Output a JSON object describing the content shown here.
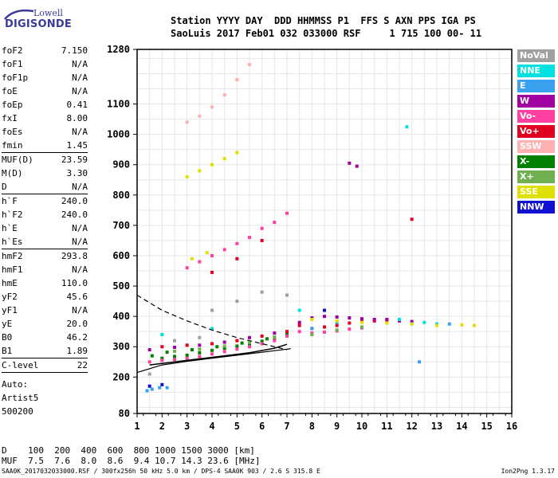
{
  "logo": {
    "company": "Lowell",
    "product": "DIGISONDE"
  },
  "header": {
    "line1": "Station YYYY DAY  DDD HHMMSS P1  FFS S AXN PPS IGA PS",
    "line2": "SaoLuis 2017 Feb01 032 033000 RSF     1 715 100 00- 11"
  },
  "params": [
    {
      "k": "foF2",
      "v": "7.150"
    },
    {
      "k": "foF1",
      "v": "N/A"
    },
    {
      "k": "foF1p",
      "v": "N/A"
    },
    {
      "k": "foE",
      "v": "N/A"
    },
    {
      "k": "foEp",
      "v": "0.41"
    },
    {
      "k": "fxI",
      "v": "8.00"
    },
    {
      "k": "foEs",
      "v": "N/A"
    },
    {
      "k": "fmin",
      "v": "1.45"
    },
    {
      "k": "MUF(D)",
      "v": "23.59",
      "sep": true
    },
    {
      "k": "M(D)",
      "v": "3.30"
    },
    {
      "k": "D",
      "v": "N/A"
    },
    {
      "k": "h`F",
      "v": "240.0",
      "sep": true
    },
    {
      "k": "h`F2",
      "v": "240.0"
    },
    {
      "k": "h`E",
      "v": "N/A"
    },
    {
      "k": "h`Es",
      "v": "N/A"
    },
    {
      "k": "hmF2",
      "v": "293.8",
      "sep": true
    },
    {
      "k": "hmF1",
      "v": "N/A"
    },
    {
      "k": "hmE",
      "v": "110.0"
    },
    {
      "k": "yF2",
      "v": "45.6"
    },
    {
      "k": "yF1",
      "v": "N/A"
    },
    {
      "k": "yE",
      "v": "20.0"
    },
    {
      "k": "B0",
      "v": "46.2"
    },
    {
      "k": "B1",
      "v": "1.89"
    },
    {
      "k": "C-level",
      "v": "22",
      "sep": true
    }
  ],
  "autoscale": {
    "line1": "Auto:",
    "line2": "Artist5",
    "line3": "500200"
  },
  "legend": [
    {
      "label": "NoVal",
      "bg": "#a0a0a0",
      "fg": "#ffffff"
    },
    {
      "label": "NNE",
      "bg": "#00e0e0",
      "fg": "#ffffff"
    },
    {
      "label": "E",
      "bg": "#3aa0f0",
      "fg": "#ffffff"
    },
    {
      "label": "W",
      "bg": "#a000a0",
      "fg": "#ffffff"
    },
    {
      "label": "Vo-",
      "bg": "#ff40a0",
      "fg": "#ffffff"
    },
    {
      "label": "Vo+",
      "bg": "#e00020",
      "fg": "#ffffff"
    },
    {
      "label": "SSW",
      "bg": "#ffb0b0",
      "fg": "#ffffff"
    },
    {
      "label": "X-",
      "bg": "#008000",
      "fg": "#ffffff"
    },
    {
      "label": "X+",
      "bg": "#70b050",
      "fg": "#ffffff"
    },
    {
      "label": "SSE",
      "bg": "#e0e000",
      "fg": "#ffffff"
    },
    {
      "label": "NNW",
      "bg": "#1010d0",
      "fg": "#ffffff"
    }
  ],
  "muf_table": {
    "d_line": "D    100  200  400  600  800 1000 1500 3000 [km]",
    "muf_line": "MUF  7.5  7.6  8.0  8.6  9.4 10.7 14.3 23.6 [MHz]"
  },
  "footer": {
    "left": "SAA0K_2017032033000.RSF / 300fx256h 50 kHz 5.0 km / DPS-4 SAA0K 903 / 2.6 S 315.8 E",
    "right": "Ion2Png 1.3.17"
  },
  "chart_data": {
    "type": "scatter",
    "title": "",
    "xlabel": "",
    "ylabel": "",
    "x_ticks": [
      1,
      2,
      3,
      4,
      5,
      6,
      7,
      8,
      9,
      10,
      11,
      12,
      13,
      14,
      15,
      16
    ],
    "xlim": [
      1,
      16
    ],
    "y_ticks": [
      80,
      200,
      300,
      400,
      500,
      600,
      700,
      800,
      900,
      1000,
      1100,
      1280
    ],
    "ylim": [
      80,
      1280
    ],
    "grid": true,
    "series": [
      {
        "name": "X-",
        "color": "#008000",
        "points": [
          [
            1.6,
            270
          ],
          [
            2.0,
            262
          ],
          [
            2.5,
            268
          ],
          [
            3.0,
            272
          ],
          [
            3.5,
            280
          ],
          [
            4.0,
            288
          ],
          [
            4.5,
            295
          ],
          [
            5.0,
            302
          ],
          [
            5.5,
            310
          ],
          [
            6.0,
            318
          ],
          [
            6.5,
            328
          ],
          [
            7.0,
            340
          ],
          [
            2.2,
            282
          ],
          [
            3.2,
            290
          ],
          [
            4.2,
            300
          ],
          [
            5.2,
            312
          ],
          [
            6.2,
            326
          ]
        ]
      },
      {
        "name": "Vo-",
        "color": "#ff40a0",
        "points": [
          [
            1.5,
            250
          ],
          [
            2.0,
            255
          ],
          [
            2.5,
            258
          ],
          [
            3.0,
            262
          ],
          [
            3.5,
            268
          ],
          [
            4.0,
            276
          ],
          [
            4.5,
            284
          ],
          [
            5.0,
            292
          ],
          [
            5.5,
            300
          ],
          [
            6.0,
            310
          ],
          [
            6.5,
            320
          ],
          [
            7.0,
            335
          ],
          [
            7.5,
            350
          ],
          [
            8.0,
            345
          ],
          [
            8.5,
            348
          ],
          [
            9.0,
            352
          ],
          [
            9.5,
            358
          ],
          [
            10.0,
            362
          ],
          [
            3.0,
            560
          ],
          [
            3.5,
            580
          ],
          [
            4.0,
            600
          ],
          [
            4.5,
            620
          ],
          [
            5.0,
            640
          ],
          [
            5.5,
            660
          ],
          [
            6.0,
            690
          ],
          [
            6.5,
            710
          ],
          [
            7.0,
            740
          ]
        ]
      },
      {
        "name": "Vo+",
        "color": "#e00020",
        "points": [
          [
            2.0,
            300
          ],
          [
            3.0,
            305
          ],
          [
            4.0,
            310
          ],
          [
            5.0,
            320
          ],
          [
            6.0,
            335
          ],
          [
            7.0,
            350
          ],
          [
            7.5,
            370
          ],
          [
            8.0,
            360
          ],
          [
            8.5,
            365
          ],
          [
            9.0,
            370
          ],
          [
            9.5,
            378
          ],
          [
            10.0,
            382
          ],
          [
            10.5,
            385
          ],
          [
            11.0,
            388
          ],
          [
            4.0,
            545
          ],
          [
            5.0,
            590
          ],
          [
            6.0,
            650
          ],
          [
            12.0,
            720
          ]
        ]
      },
      {
        "name": "W",
        "color": "#a000a0",
        "points": [
          [
            1.5,
            290
          ],
          [
            2.5,
            298
          ],
          [
            3.5,
            305
          ],
          [
            4.5,
            315
          ],
          [
            5.5,
            330
          ],
          [
            6.5,
            345
          ],
          [
            7.5,
            380
          ],
          [
            8.0,
            395
          ],
          [
            8.5,
            400
          ],
          [
            9.0,
            398
          ],
          [
            9.5,
            395
          ],
          [
            10.0,
            392
          ],
          [
            10.5,
            390
          ],
          [
            11.0,
            390
          ],
          [
            11.5,
            385
          ],
          [
            12.0,
            383
          ],
          [
            9.5,
            905
          ],
          [
            9.8,
            895
          ]
        ]
      },
      {
        "name": "NNE",
        "color": "#00e0e0",
        "points": [
          [
            2.0,
            340
          ],
          [
            4.0,
            360
          ],
          [
            7.5,
            420
          ],
          [
            11.5,
            390
          ],
          [
            12.0,
            375
          ],
          [
            12.5,
            380
          ],
          [
            11.8,
            1025
          ],
          [
            13.0,
            375
          ]
        ]
      },
      {
        "name": "E",
        "color": "#3aa0f0",
        "points": [
          [
            1.6,
            160
          ],
          [
            1.9,
            165
          ],
          [
            2.2,
            165
          ],
          [
            1.4,
            155
          ],
          [
            8.0,
            360
          ],
          [
            9.0,
            380
          ],
          [
            13.5,
            375
          ],
          [
            12.3,
            250
          ]
        ]
      },
      {
        "name": "SSE",
        "color": "#e0e000",
        "points": [
          [
            3.0,
            860
          ],
          [
            3.5,
            880
          ],
          [
            4.0,
            900
          ],
          [
            4.5,
            920
          ],
          [
            5.0,
            940
          ],
          [
            3.2,
            590
          ],
          [
            3.8,
            610
          ],
          [
            8.0,
            390
          ],
          [
            9.0,
            385
          ],
          [
            10.0,
            380
          ],
          [
            11.0,
            378
          ],
          [
            12.0,
            375
          ],
          [
            13.0,
            370
          ],
          [
            14.0,
            372
          ],
          [
            14.5,
            370
          ]
        ]
      },
      {
        "name": "X+",
        "color": "#70b050",
        "points": [
          [
            2.5,
            285
          ],
          [
            3.5,
            292
          ],
          [
            4.5,
            302
          ],
          [
            5.5,
            314
          ],
          [
            6.5,
            332
          ],
          [
            8.0,
            340
          ],
          [
            9.0,
            355
          ],
          [
            10.0,
            365
          ]
        ]
      },
      {
        "name": "SSW",
        "color": "#ffb0b0",
        "points": [
          [
            3.0,
            1040
          ],
          [
            3.5,
            1060
          ],
          [
            4.0,
            1090
          ],
          [
            4.5,
            1130
          ],
          [
            5.0,
            1180
          ],
          [
            5.5,
            1230
          ]
        ]
      },
      {
        "name": "NNW",
        "color": "#1010d0",
        "points": [
          [
            1.5,
            170
          ],
          [
            2.0,
            175
          ],
          [
            8.5,
            420
          ]
        ]
      },
      {
        "name": "NoVal",
        "color": "#a0a0a0",
        "points": [
          [
            1.5,
            210
          ],
          [
            2.5,
            320
          ],
          [
            3.5,
            330
          ],
          [
            4.0,
            420
          ],
          [
            5.0,
            450
          ],
          [
            6.0,
            480
          ],
          [
            7.0,
            470
          ]
        ]
      }
    ],
    "profile_curve": [
      [
        1.0,
        215
      ],
      [
        2.0,
        240
      ],
      [
        3.0,
        252
      ],
      [
        4.0,
        262
      ],
      [
        5.0,
        272
      ],
      [
        6.0,
        282
      ],
      [
        6.5,
        287
      ],
      [
        7.0,
        292
      ],
      [
        7.15,
        293.8
      ]
    ],
    "dashed_curve": [
      [
        1.0,
        470
      ],
      [
        2.0,
        420
      ],
      [
        3.0,
        385
      ],
      [
        4.0,
        355
      ],
      [
        5.0,
        330
      ],
      [
        6.0,
        310
      ],
      [
        6.5,
        300
      ],
      [
        7.0,
        290
      ]
    ],
    "trace_curve": [
      [
        1.5,
        240
      ],
      [
        2.5,
        250
      ],
      [
        3.5,
        260
      ],
      [
        4.5,
        270
      ],
      [
        5.5,
        280
      ],
      [
        6.5,
        295
      ],
      [
        7.0,
        308
      ]
    ]
  }
}
